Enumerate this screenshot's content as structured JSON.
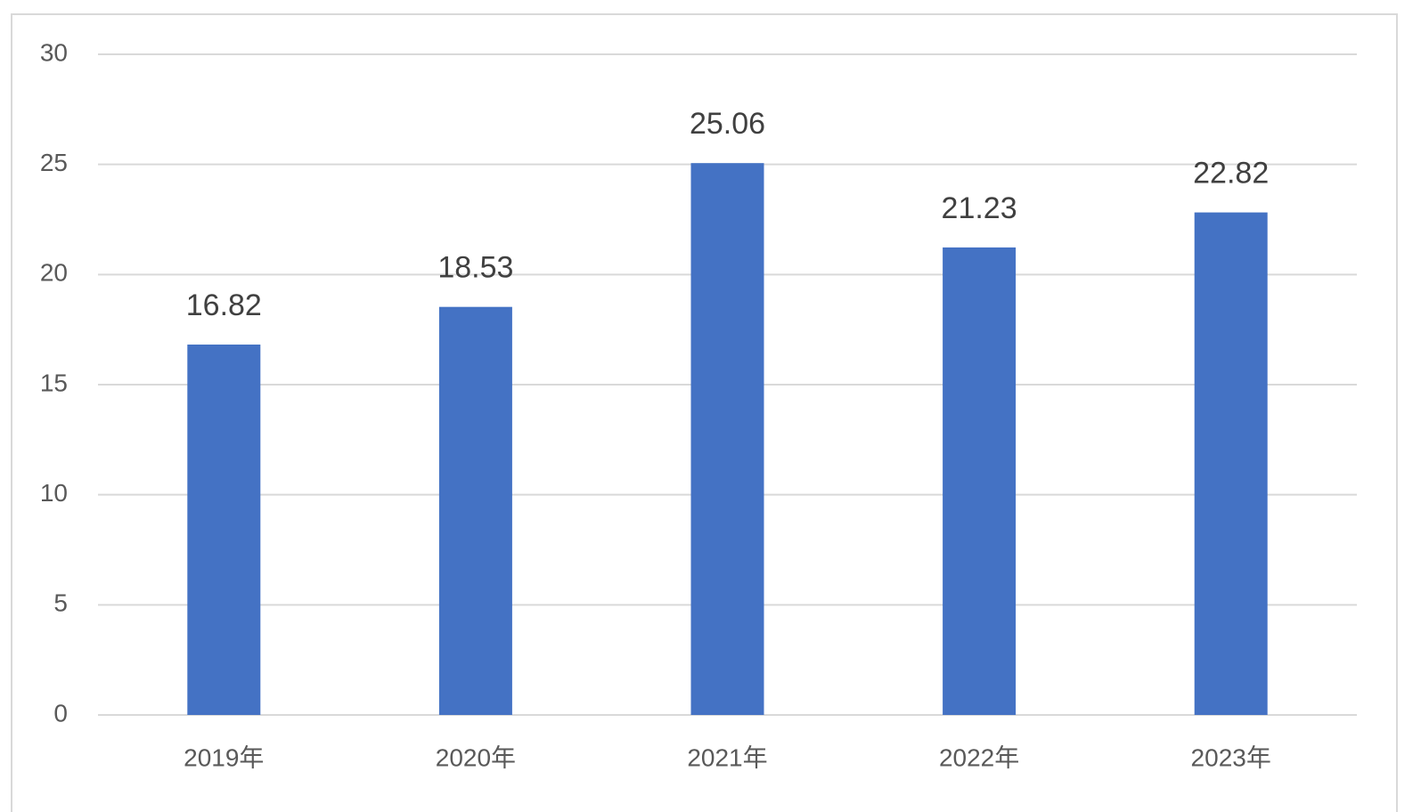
{
  "chart_data": {
    "type": "bar",
    "categories": [
      "2019年",
      "2020年",
      "2021年",
      "2022年",
      "2023年"
    ],
    "values": [
      16.82,
      18.53,
      25.06,
      21.23,
      22.82
    ],
    "color": "#4472c4",
    "ylim": [
      0,
      30
    ],
    "yticks": [
      0,
      5,
      10,
      15,
      20,
      25,
      30
    ],
    "grid": true
  }
}
